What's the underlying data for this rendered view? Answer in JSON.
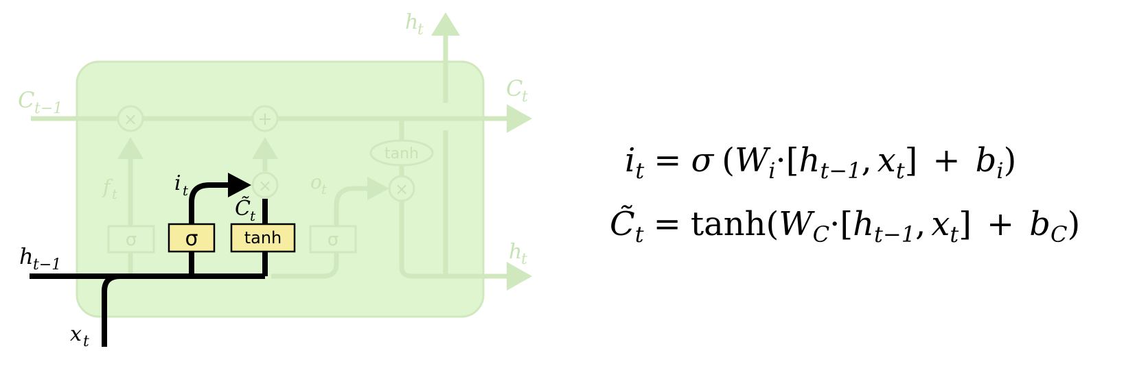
{
  "diagram": {
    "labels": {
      "c_prev": {
        "base": "C",
        "sub": "t−1"
      },
      "c_next": {
        "base": "C",
        "sub": "t"
      },
      "h_top": {
        "base": "h",
        "sub": "t"
      },
      "h_right": {
        "base": "h",
        "sub": "t"
      },
      "h_prev": {
        "base": "h",
        "sub": "t−1"
      },
      "x_in": {
        "base": "x",
        "sub": "t"
      },
      "f_gate": {
        "base": "f",
        "sub": "t"
      },
      "i_gate": {
        "base": "i",
        "sub": "t"
      },
      "o_gate": {
        "base": "o",
        "sub": "t"
      },
      "c_tilde": {
        "base": "C̃",
        "sub": "t"
      }
    },
    "operators": {
      "multiply": "×",
      "add": "+"
    },
    "boxes": {
      "forget_sigma": "σ",
      "input_sigma": "σ",
      "input_tanh": "tanh",
      "output_sigma": "σ",
      "cell_tanh": "tanh"
    },
    "colors": {
      "cell_background": "#dff5d0",
      "faded": "#cfe8bd",
      "highlight_box": "#f7eda0",
      "active_path": "#000000"
    }
  },
  "equations": {
    "eq1": {
      "lhs_base": "i",
      "lhs_sub": "t",
      "eq_sign": "=",
      "func": "σ",
      "open": "(",
      "w_base": "W",
      "w_sub": "i",
      "dot": "·",
      "bracket_open": "[",
      "h_base": "h",
      "h_sub": "t−1",
      "comma": ",",
      "x_base": "x",
      "x_sub": "t",
      "bracket_close": "]",
      "plus": "+",
      "b_base": "b",
      "b_sub": "i",
      "close": ")"
    },
    "eq2": {
      "lhs_base": "C̃",
      "lhs_sub": "t",
      "eq_sign": "=",
      "func": "tanh",
      "open": "(",
      "w_base": "W",
      "w_sub": "C",
      "dot": "·",
      "bracket_open": "[",
      "h_base": "h",
      "h_sub": "t−1",
      "comma": ",",
      "x_base": "x",
      "x_sub": "t",
      "bracket_close": "]",
      "plus": "+",
      "b_base": "b",
      "b_sub": "C",
      "close": ")"
    }
  }
}
